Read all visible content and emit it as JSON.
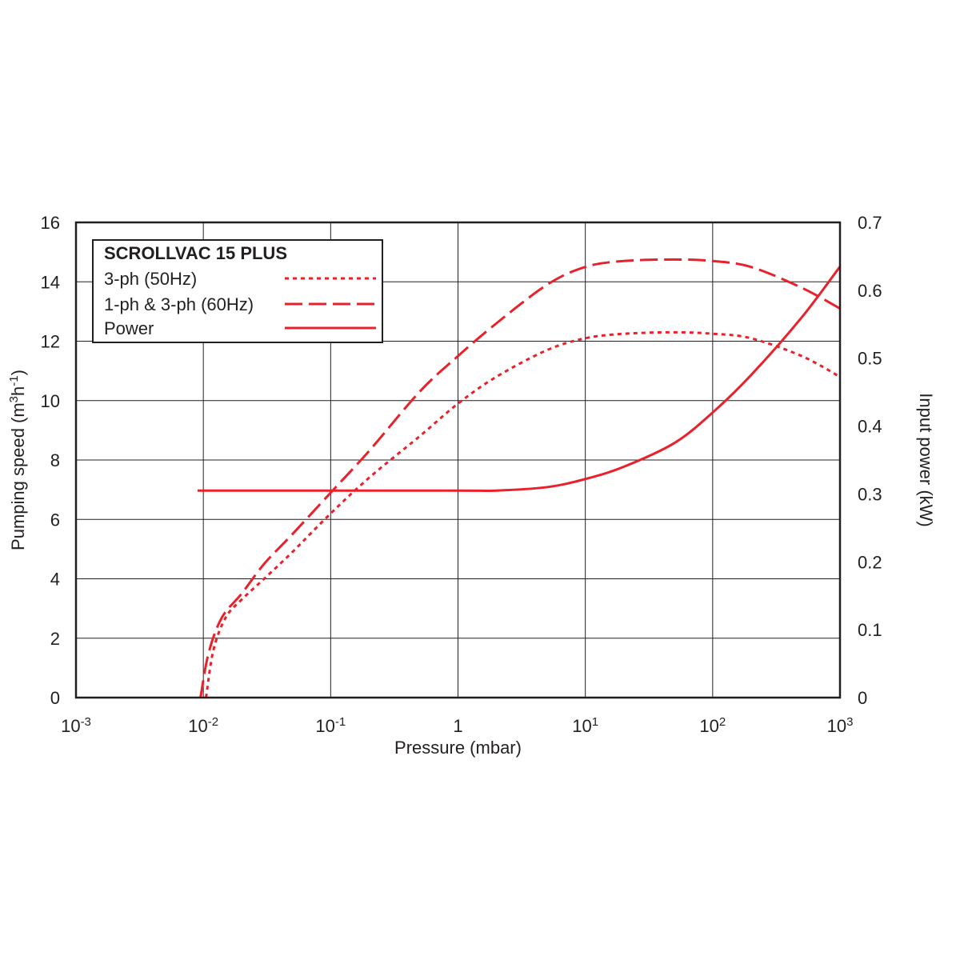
{
  "chart_data": {
    "type": "line",
    "title": "SCROLLVAC 15 PLUS",
    "xlabel": "Pressure (mbar)",
    "ylabel": {
      "text": "Pumping speed (m",
      "sup1": "3",
      "mid": "h",
      "sup2": "-1",
      "end": ")"
    },
    "y2label": "Input power (kW)",
    "x_scale": "log",
    "xlim": [
      0.001,
      1000
    ],
    "ylim": [
      0,
      16
    ],
    "y2lim": [
      0,
      0.7
    ],
    "grid": true,
    "legend_position": "top-left",
    "x_ticks": [
      {
        "value": 0.001,
        "base": "10",
        "exp": "-3"
      },
      {
        "value": 0.01,
        "base": "10",
        "exp": "-2"
      },
      {
        "value": 0.1,
        "base": "10",
        "exp": "-1"
      },
      {
        "value": 1,
        "base": "1",
        "exp": ""
      },
      {
        "value": 10,
        "base": "10",
        "exp": "1"
      },
      {
        "value": 100,
        "base": "10",
        "exp": "2"
      },
      {
        "value": 1000,
        "base": "10",
        "exp": "3"
      }
    ],
    "y_ticks": [
      "0",
      "2",
      "4",
      "6",
      "8",
      "10",
      "12",
      "14",
      "16"
    ],
    "y2_ticks": [
      "0",
      "0.1",
      "0.2",
      "0.3",
      "0.4",
      "0.5",
      "0.6",
      "0.7"
    ],
    "color": "#e8212b",
    "series": [
      {
        "name": "3-ph (50Hz)",
        "axis": "left",
        "dash": "dotted",
        "points": [
          [
            0.0105,
            0
          ],
          [
            0.012,
            1.6
          ],
          [
            0.015,
            2.7
          ],
          [
            0.02,
            3.3
          ],
          [
            0.03,
            4.0
          ],
          [
            0.05,
            4.9
          ],
          [
            0.1,
            6.2
          ],
          [
            0.2,
            7.4
          ],
          [
            0.5,
            8.8
          ],
          [
            1,
            9.9
          ],
          [
            2,
            10.8
          ],
          [
            5,
            11.7
          ],
          [
            10,
            12.1
          ],
          [
            20,
            12.25
          ],
          [
            50,
            12.3
          ],
          [
            100,
            12.25
          ],
          [
            200,
            12.1
          ],
          [
            500,
            11.5
          ],
          [
            1000,
            10.8
          ]
        ]
      },
      {
        "name": "1-ph & 3-ph (60Hz)",
        "axis": "left",
        "dash": "dashed",
        "points": [
          [
            0.0095,
            0
          ],
          [
            0.011,
            1.5
          ],
          [
            0.014,
            2.7
          ],
          [
            0.02,
            3.5
          ],
          [
            0.03,
            4.5
          ],
          [
            0.05,
            5.5
          ],
          [
            0.1,
            6.9
          ],
          [
            0.2,
            8.3
          ],
          [
            0.5,
            10.3
          ],
          [
            1,
            11.5
          ],
          [
            2,
            12.6
          ],
          [
            5,
            13.9
          ],
          [
            10,
            14.5
          ],
          [
            20,
            14.7
          ],
          [
            50,
            14.75
          ],
          [
            100,
            14.7
          ],
          [
            200,
            14.5
          ],
          [
            500,
            13.8
          ],
          [
            1000,
            13.1
          ]
        ]
      },
      {
        "name": "Power",
        "axis": "right",
        "dash": "solid",
        "points": [
          [
            0.009,
            0.305
          ],
          [
            0.1,
            0.305
          ],
          [
            1,
            0.305
          ],
          [
            2,
            0.305
          ],
          [
            5,
            0.31
          ],
          [
            10,
            0.322
          ],
          [
            20,
            0.34
          ],
          [
            50,
            0.375
          ],
          [
            100,
            0.42
          ],
          [
            200,
            0.475
          ],
          [
            500,
            0.56
          ],
          [
            1000,
            0.635
          ]
        ]
      }
    ]
  }
}
